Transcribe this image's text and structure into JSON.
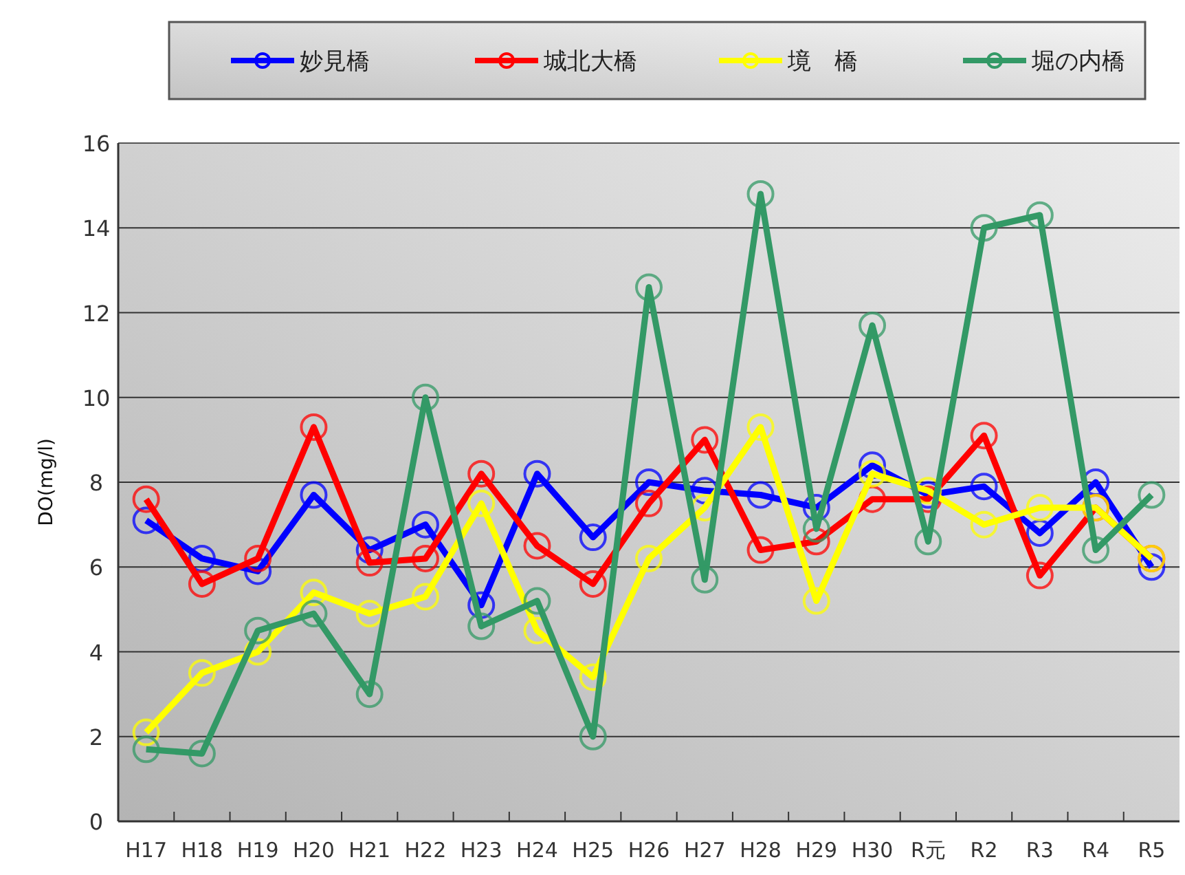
{
  "chart_data": {
    "type": "line",
    "ylabel": "DO(mg/l)",
    "categories": [
      "H17",
      "H18",
      "H19",
      "H20",
      "H21",
      "H22",
      "H23",
      "H24",
      "H25",
      "H26",
      "H27",
      "H28",
      "H29",
      "H30",
      "R元",
      "R2",
      "R3",
      "R4",
      "R5"
    ],
    "series": [
      {
        "name": "妙見橋",
        "color": "#0000ff",
        "values": [
          7.1,
          6.2,
          5.9,
          7.7,
          6.4,
          7.0,
          5.1,
          8.2,
          6.7,
          8.0,
          7.8,
          7.7,
          7.4,
          8.4,
          7.7,
          7.9,
          6.8,
          8.0,
          6.0
        ]
      },
      {
        "name": "城北大橋",
        "color": "#ff0000",
        "values": [
          7.6,
          5.6,
          6.2,
          9.3,
          6.1,
          6.2,
          8.2,
          6.5,
          5.6,
          7.5,
          9.0,
          6.4,
          6.6,
          7.6,
          7.6,
          9.1,
          5.8,
          7.4,
          6.2
        ]
      },
      {
        "name": "境　橋",
        "color": "#ffff00",
        "values": [
          2.1,
          3.5,
          4.0,
          5.4,
          4.9,
          5.3,
          7.5,
          4.5,
          3.4,
          6.2,
          7.4,
          9.3,
          5.2,
          8.2,
          7.8,
          7.0,
          7.4,
          7.4,
          6.2
        ]
      },
      {
        "name": "堀の内橋",
        "color": "#339966",
        "values": [
          1.7,
          1.6,
          4.5,
          4.9,
          3.0,
          10.0,
          4.6,
          5.2,
          2.0,
          12.6,
          5.7,
          14.8,
          6.9,
          11.7,
          6.6,
          14.0,
          14.3,
          6.4,
          7.7
        ]
      }
    ],
    "ylim": [
      0,
      16
    ],
    "yticks": [
      0,
      2,
      4,
      6,
      8,
      10,
      12,
      14,
      16
    ],
    "grid": "y",
    "legend": "top",
    "marker": "circle",
    "line_style": "solid"
  }
}
